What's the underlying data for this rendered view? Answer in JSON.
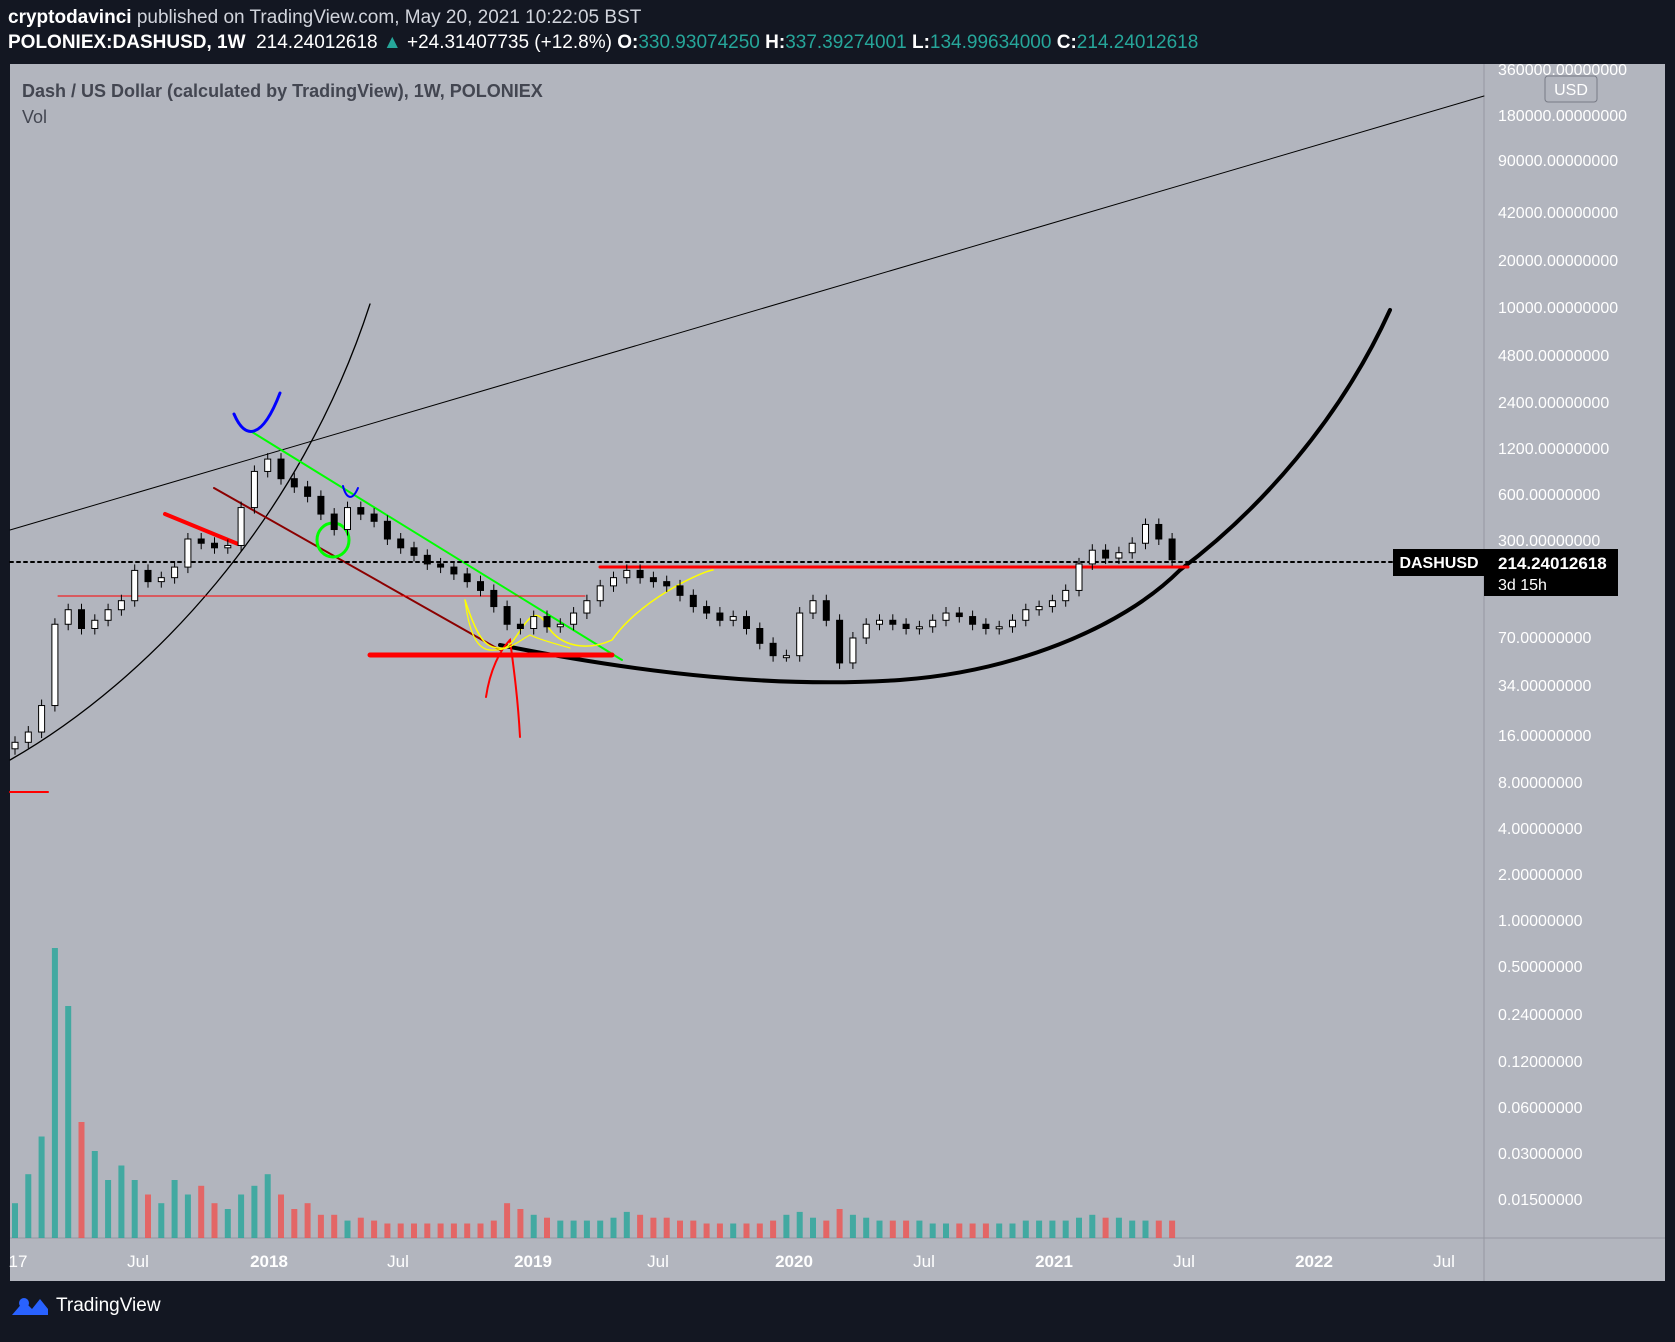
{
  "header": {
    "author": "cryptodavinci",
    "published": "published on TradingView.com, May 20, 2021 10:22:05 BST",
    "symbol": "POLONIEX:DASHUSD, 1W",
    "last": "214.24012618",
    "change": "+24.31407735 (+12.8%)",
    "open_label": "O:",
    "open": "330.93074250",
    "high_label": "H:",
    "high": "337.39274001",
    "low_label": "L:",
    "low": "134.99634000",
    "close_label": "C:",
    "close": "214.24012618"
  },
  "chart_title": "Dash / US Dollar (calculated by TradingView), 1W, POLONIEX",
  "vol_label": "Vol",
  "footer": {
    "brand": "TradingView"
  },
  "colors": {
    "page_bg": "#131722",
    "chart_bg": "#b2b5be",
    "up": "#26a69a",
    "down": "#ef5350",
    "green_line": "#00ff00",
    "red_line": "#ff0000",
    "darkred_line": "#8b0000",
    "blue_mark": "#0000ff",
    "yellow_curve": "#ffff00",
    "label_bg": "#000000"
  },
  "chart_data": {
    "type": "line",
    "scale": "log",
    "title": "Dash / US Dollar (calculated by TradingView), 1W, POLONIEX",
    "currency_label": "USD",
    "y_ticks": [
      "360000.00000000",
      "180000.00000000",
      "90000.00000000",
      "42000.00000000",
      "20000.00000000",
      "10000.00000000",
      "4800.00000000",
      "2400.00000000",
      "1200.00000000",
      "600.00000000",
      "300.00000000",
      "70.00000000",
      "34.00000000",
      "16.00000000",
      "8.00000000",
      "4.00000000",
      "2.00000000",
      "1.00000000",
      "0.50000000",
      "0.24000000",
      "0.12000000",
      "0.06000000",
      "0.03000000",
      "0.01500000"
    ],
    "y_tick_values": [
      360000,
      180000,
      90000,
      42000,
      20000,
      10000,
      4800,
      2400,
      1200,
      600,
      300,
      70,
      34,
      16,
      8,
      4,
      2,
      1,
      0.5,
      0.24,
      0.12,
      0.06,
      0.03,
      0.015
    ],
    "x_ticks": [
      "17",
      "Jul",
      "2018",
      "Jul",
      "2019",
      "Jul",
      "2020",
      "Jul",
      "2021",
      "Jul",
      "2022",
      "Jul"
    ],
    "x_tick_values": [
      2017.0,
      2017.5,
      2018.0,
      2018.5,
      2019.0,
      2019.5,
      2020.0,
      2020.5,
      2021.0,
      2021.5,
      2022.0,
      2022.5
    ],
    "x_range": [
      2016.97,
      2022.6
    ],
    "series": [
      {
        "name": "DASHUSD",
        "x": [
          2017.0,
          2017.05,
          2017.1,
          2017.15,
          2017.2,
          2017.25,
          2017.3,
          2017.35,
          2017.4,
          2017.45,
          2017.5,
          2017.55,
          2017.6,
          2017.65,
          2017.7,
          2017.75,
          2017.8,
          2017.85,
          2017.9,
          2017.95,
          2018.0,
          2018.05,
          2018.1,
          2018.15,
          2018.2,
          2018.25,
          2018.3,
          2018.35,
          2018.4,
          2018.45,
          2018.5,
          2018.55,
          2018.6,
          2018.65,
          2018.7,
          2018.75,
          2018.8,
          2018.85,
          2018.9,
          2018.95,
          2019.0,
          2019.05,
          2019.1,
          2019.15,
          2019.2,
          2019.25,
          2019.3,
          2019.35,
          2019.4,
          2019.45,
          2019.5,
          2019.55,
          2019.6,
          2019.65,
          2019.7,
          2019.75,
          2019.8,
          2019.85,
          2019.9,
          2019.95,
          2020.0,
          2020.05,
          2020.1,
          2020.15,
          2020.2,
          2020.25,
          2020.3,
          2020.35,
          2020.4,
          2020.45,
          2020.5,
          2020.55,
          2020.6,
          2020.65,
          2020.7,
          2020.75,
          2020.8,
          2020.85,
          2020.9,
          2020.95,
          2021.0,
          2021.05,
          2021.1,
          2021.15,
          2021.2,
          2021.25,
          2021.3,
          2021.35
        ],
        "y": [
          11,
          13,
          20,
          75,
          95,
          70,
          80,
          95,
          110,
          180,
          150,
          160,
          190,
          300,
          280,
          260,
          270,
          500,
          900,
          1100,
          800,
          700,
          600,
          450,
          350,
          500,
          450,
          400,
          300,
          260,
          230,
          200,
          190,
          170,
          150,
          130,
          100,
          75,
          70,
          85,
          72,
          75,
          90,
          110,
          140,
          160,
          180,
          160,
          150,
          140,
          120,
          100,
          90,
          80,
          85,
          70,
          55,
          45,
          45,
          90,
          110,
          80,
          40,
          60,
          75,
          80,
          75,
          70,
          72,
          80,
          90,
          85,
          75,
          70,
          72,
          80,
          95,
          100,
          110,
          130,
          200,
          250,
          220,
          240,
          280,
          380,
          300,
          214
        ]
      }
    ],
    "volume": {
      "x": [
        2017.0,
        2017.05,
        2017.1,
        2017.15,
        2017.2,
        2017.25,
        2017.3,
        2017.35,
        2017.4,
        2017.45,
        2017.5,
        2017.55,
        2017.6,
        2017.65,
        2017.7,
        2017.75,
        2017.8,
        2017.85,
        2017.9,
        2017.95,
        2018.0,
        2018.05,
        2018.1,
        2018.15,
        2018.2,
        2018.25,
        2018.3,
        2018.35,
        2018.4,
        2018.45,
        2018.5,
        2018.55,
        2018.6,
        2018.65,
        2018.7,
        2018.75,
        2018.8,
        2018.85,
        2018.9,
        2018.95,
        2019.0,
        2019.05,
        2019.1,
        2019.15,
        2019.2,
        2019.25,
        2019.3,
        2019.35,
        2019.4,
        2019.45,
        2019.5,
        2019.55,
        2019.6,
        2019.65,
        2019.7,
        2019.75,
        2019.8,
        2019.85,
        2019.9,
        2019.95,
        2020.0,
        2020.05,
        2020.1,
        2020.15,
        2020.2,
        2020.25,
        2020.3,
        2020.35,
        2020.4,
        2020.45,
        2020.5,
        2020.55,
        2020.6,
        2020.65,
        2020.7,
        2020.75,
        2020.8,
        2020.85,
        2020.9,
        2020.95,
        2021.0,
        2021.05,
        2021.1,
        2021.15,
        2021.2,
        2021.25,
        2021.3,
        2021.35
      ],
      "values": [
        0.12,
        0.22,
        0.35,
        1.0,
        0.8,
        0.4,
        0.3,
        0.2,
        0.25,
        0.2,
        0.15,
        0.12,
        0.2,
        0.15,
        0.18,
        0.12,
        0.1,
        0.15,
        0.18,
        0.22,
        0.15,
        0.1,
        0.12,
        0.08,
        0.08,
        0.06,
        0.07,
        0.06,
        0.05,
        0.05,
        0.05,
        0.05,
        0.05,
        0.05,
        0.05,
        0.05,
        0.06,
        0.12,
        0.1,
        0.08,
        0.07,
        0.06,
        0.06,
        0.06,
        0.06,
        0.07,
        0.09,
        0.08,
        0.07,
        0.07,
        0.06,
        0.06,
        0.05,
        0.05,
        0.05,
        0.05,
        0.05,
        0.06,
        0.08,
        0.09,
        0.07,
        0.06,
        0.1,
        0.08,
        0.07,
        0.06,
        0.06,
        0.06,
        0.06,
        0.05,
        0.05,
        0.05,
        0.05,
        0.05,
        0.05,
        0.05,
        0.06,
        0.06,
        0.06,
        0.06,
        0.07,
        0.08,
        0.07,
        0.07,
        0.06,
        0.06,
        0.06,
        0.06
      ]
    },
    "last_label": {
      "symbol": "DASHUSD",
      "value": "214.24012618",
      "countdown": "3d 15h"
    }
  }
}
